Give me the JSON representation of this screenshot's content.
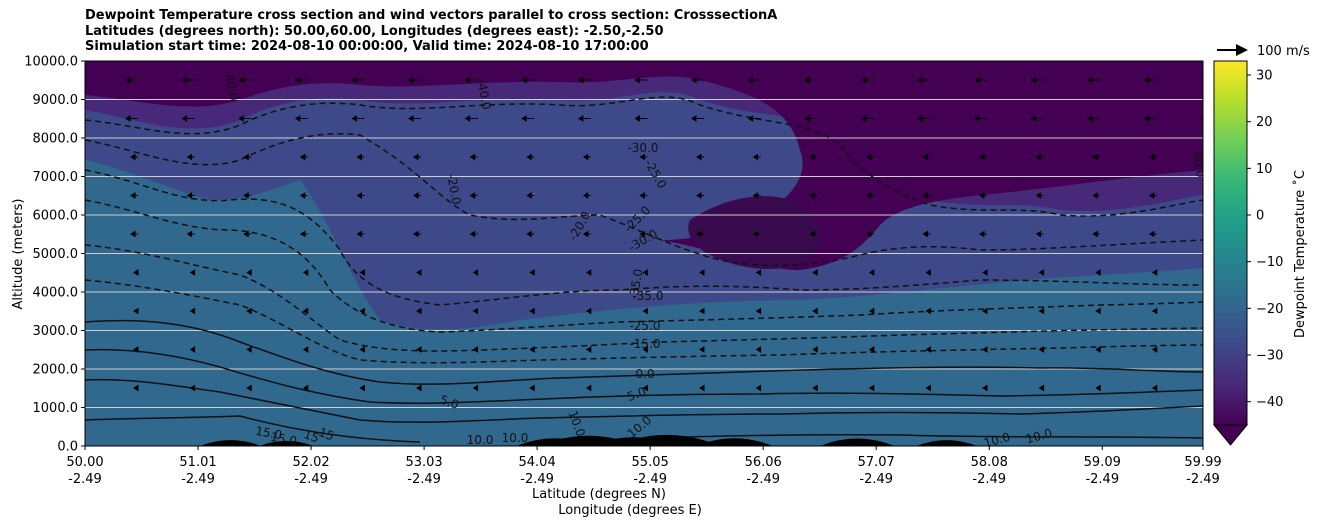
{
  "title_lines": [
    "Dewpoint Temperature cross section and wind vectors parallel to cross section: CrosssectionA",
    "Latitudes (degrees north): 50.00,60.00, Longitudes (degrees east): -2.50,-2.50",
    "Simulation start time: 2024-08-10 00:00:00, Valid time: 2024-08-10 17:00:00"
  ],
  "chart_data": {
    "type": "heatmap",
    "title": "Dewpoint Temperature cross section and wind vectors parallel to cross section: CrosssectionA",
    "ylabel": "Altitude (meters)",
    "xlabel_lines": [
      "Latitude (degrees N)",
      "Longitude (degrees E)"
    ],
    "x_ticks": [
      {
        "lat": "50.00",
        "lon": "-2.49"
      },
      {
        "lat": "51.01",
        "lon": "-2.49"
      },
      {
        "lat": "52.02",
        "lon": "-2.49"
      },
      {
        "lat": "53.03",
        "lon": "-2.49"
      },
      {
        "lat": "54.04",
        "lon": "-2.49"
      },
      {
        "lat": "55.05",
        "lon": "-2.49"
      },
      {
        "lat": "56.06",
        "lon": "-2.49"
      },
      {
        "lat": "57.07",
        "lon": "-2.49"
      },
      {
        "lat": "58.08",
        "lon": "-2.49"
      },
      {
        "lat": "59.09",
        "lon": "-2.49"
      },
      {
        "lat": "59.99",
        "lon": "-2.49"
      }
    ],
    "xlim": [
      50.0,
      59.99
    ],
    "y_ticks": [
      "0.0",
      "1000.0",
      "2000.0",
      "3000.0",
      "4000.0",
      "5000.0",
      "6000.0",
      "7000.0",
      "8000.0",
      "9000.0",
      "10000.0"
    ],
    "ylim": [
      0,
      10000
    ],
    "grid": "horizontal",
    "colorbar": {
      "label": "Dewpoint Temperature ˚C",
      "ticks": [
        "30",
        "20",
        "10",
        "0",
        "−10",
        "−20",
        "−30",
        "−40"
      ],
      "range": [
        -45,
        33
      ],
      "colormap": "viridis",
      "extend": "min"
    },
    "contour_labels": [
      "40.0",
      "40.0",
      "-40.0",
      "-30.0",
      "-25.0",
      "-20.0",
      "-20.0",
      "-25.0",
      "-30.0",
      "-35.0",
      "-35.0",
      "-25.0",
      "-15.0",
      "0.0",
      "5.0",
      "5.0",
      "10.0",
      "10.0",
      "10.0",
      "10.0",
      "15.0",
      "15.0",
      "15",
      "15",
      "10.0",
      "10.0"
    ],
    "wind_key": {
      "label": "100 m/s",
      "value_ms": 100
    },
    "terrain_peaks_m": [
      {
        "lat": 51.3,
        "alt": 150
      },
      {
        "lat": 51.8,
        "alt": 110
      },
      {
        "lat": 54.2,
        "alt": 250
      },
      {
        "lat": 54.5,
        "alt": 380
      },
      {
        "lat": 54.9,
        "alt": 300
      },
      {
        "lat": 55.2,
        "alt": 420
      },
      {
        "lat": 55.8,
        "alt": 250
      },
      {
        "lat": 56.9,
        "alt": 230
      },
      {
        "lat": 57.7,
        "alt": 150
      }
    ]
  },
  "colors": {
    "viridis": [
      "#440154",
      "#482878",
      "#3e4989",
      "#31688e",
      "#26828e",
      "#1f9e89",
      "#35b779",
      "#6ece58",
      "#b5de2b",
      "#fde725"
    ],
    "terrain": "#000000",
    "grid": "#d0d0d0"
  }
}
